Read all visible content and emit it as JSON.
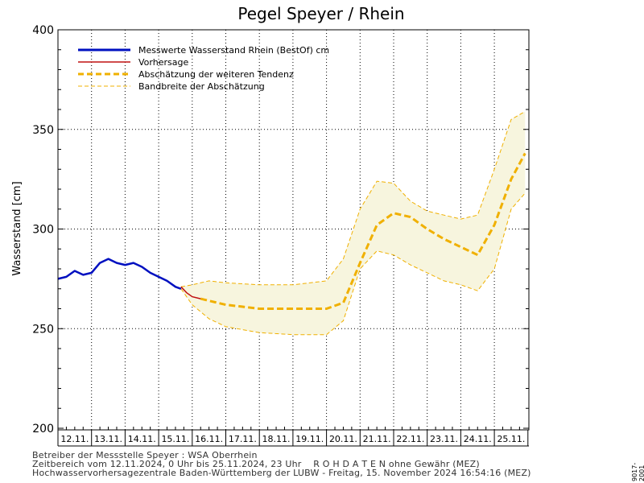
{
  "chart_data": {
    "type": "line",
    "title": "Pegel Speyer / Rhein",
    "ylabel": "Wasserstand [cm]",
    "xlabel": "",
    "ylim": [
      200,
      400
    ],
    "y_ticks": [
      200,
      250,
      300,
      350,
      400
    ],
    "x_range_days": [
      "12.11.2024",
      "26.11.2024"
    ],
    "categories": [
      "12.11.",
      "13.11.",
      "14.11.",
      "15.11.",
      "16.11.",
      "17.11.",
      "18.11.",
      "19.11.",
      "20.11.",
      "21.11.",
      "22.11.",
      "23.11.",
      "24.11.",
      "25.11."
    ],
    "grid": true,
    "legend_position": "top-left",
    "colors": {
      "measured": "#0010c0",
      "forecast": "#c01010",
      "tendency": "#f0b000",
      "band_line": "#f0b000",
      "band_fill": "#f7f5de"
    },
    "series": [
      {
        "name": "Messwerte Wasserstand Rhein (BestOf)  cm",
        "style": "solid-thick",
        "x": [
          "12.11. 00:00",
          "12.11. 06:00",
          "12.11. 12:00",
          "12.11. 18:00",
          "13.11. 00:00",
          "13.11. 06:00",
          "13.11. 12:00",
          "13.11. 18:00",
          "14.11. 00:00",
          "14.11. 06:00",
          "14.11. 12:00",
          "14.11. 18:00",
          "15.11. 00:00",
          "15.11. 06:00",
          "15.11. 12:00",
          "15.11. 16:00"
        ],
        "values": [
          275,
          276,
          279,
          277,
          278,
          283,
          285,
          283,
          282,
          283,
          281,
          278,
          276,
          274,
          271,
          270
        ]
      },
      {
        "name": "Vorhersage",
        "style": "solid-thin",
        "x": [
          "15.11. 16:00",
          "15.11. 20:00",
          "16.11. 00:00",
          "16.11. 06:00"
        ],
        "values": [
          271,
          268,
          266,
          265
        ]
      },
      {
        "name": "Abschätzung der weiteren Tendenz",
        "style": "dashed-thick",
        "x": [
          "16.11. 06:00",
          "17.11. 00:00",
          "17.11. 12:00",
          "18.11. 00:00",
          "18.11. 12:00",
          "19.11. 00:00",
          "19.11. 12:00",
          "20.11. 00:00",
          "20.11. 12:00",
          "21.11. 00:00",
          "21.11. 12:00",
          "22.11. 00:00",
          "22.11. 12:00",
          "23.11. 00:00",
          "23.11. 12:00",
          "24.11. 00:00",
          "24.11. 12:00",
          "25.11. 00:00",
          "25.11. 12:00",
          "25.11. 22:00"
        ],
        "values": [
          265,
          262,
          261,
          260,
          260,
          260,
          260,
          260,
          263,
          283,
          302,
          308,
          306,
          300,
          295,
          291,
          287,
          302,
          325,
          338
        ]
      },
      {
        "name": "Bandbreite der Abschätzung",
        "style": "dashed-thin",
        "upper": {
          "x": [
            "15.11. 16:00",
            "16.11. 00:00",
            "16.11. 12:00",
            "17.11. 00:00",
            "18.11. 00:00",
            "19.11. 00:00",
            "20.11. 00:00",
            "20.11. 12:00",
            "21.11. 00:00",
            "21.11. 12:00",
            "22.11. 00:00",
            "22.11. 12:00",
            "23.11. 00:00",
            "23.11. 12:00",
            "24.11. 00:00",
            "24.11. 12:00",
            "25.11. 00:00",
            "25.11. 12:00",
            "25.11. 22:00"
          ],
          "values": [
            271,
            272,
            274,
            273,
            272,
            272,
            274,
            285,
            310,
            324,
            323,
            314,
            309,
            307,
            305,
            307,
            330,
            355,
            359
          ]
        },
        "lower": {
          "x": [
            "15.11. 16:00",
            "16.11. 00:00",
            "16.11. 12:00",
            "17.11. 00:00",
            "18.11. 00:00",
            "19.11. 00:00",
            "20.11. 00:00",
            "20.11. 12:00",
            "21.11. 00:00",
            "21.11. 12:00",
            "22.11. 00:00",
            "22.11. 12:00",
            "23.11. 00:00",
            "23.11. 12:00",
            "24.11. 00:00",
            "24.11. 12:00",
            "25.11. 00:00",
            "25.11. 12:00",
            "25.11. 22:00"
          ],
          "values": [
            270,
            262,
            255,
            251,
            248,
            247,
            247,
            254,
            280,
            289,
            287,
            282,
            278,
            274,
            272,
            269,
            280,
            310,
            318
          ]
        }
      }
    ]
  },
  "footer": {
    "line1": "Betreiber der Messstelle Speyer : WSA Oberrhein",
    "line2": "Zeitbereich vom 12.11.2024, 0 Uhr bis 25.11.2024, 23 Uhr    R O H D A T E N ohne Gewähr (MEZ)",
    "line3": "Hochwasservorhersagezentrale Baden-Württemberg der LUBW - Freitag, 15. November 2024 16:54:16 (MEZ)"
  },
  "side_id": "9017-2001"
}
